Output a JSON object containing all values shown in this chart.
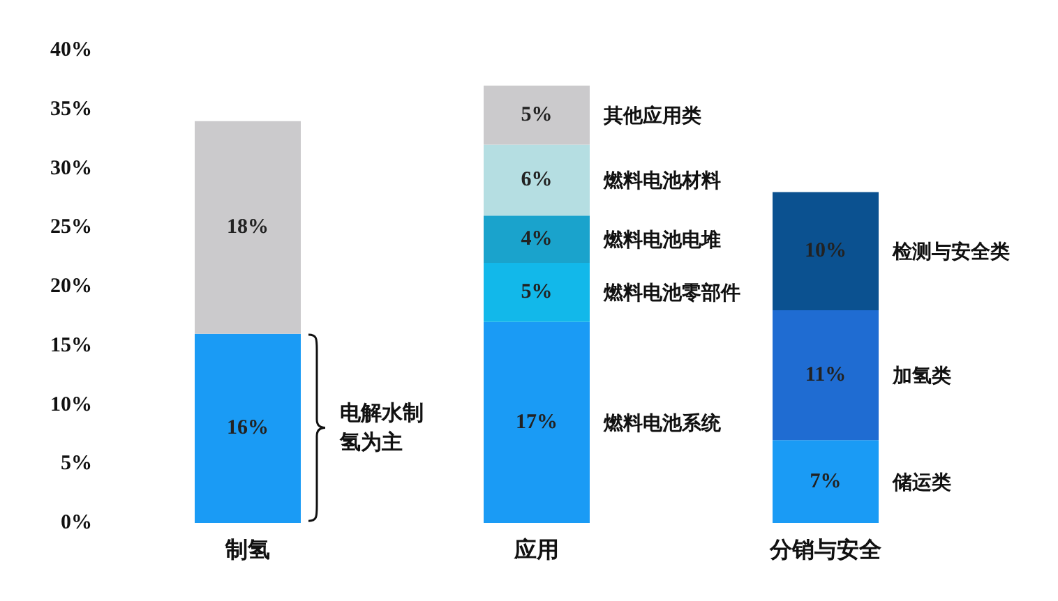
{
  "chart_data": {
    "type": "bar",
    "stacked": true,
    "categories": [
      "制氢",
      "应用",
      "分销与安全"
    ],
    "ylim": [
      0,
      40
    ],
    "yticks": [
      {
        "value": 0,
        "label": "0%"
      },
      {
        "value": 5,
        "label": "5%"
      },
      {
        "value": 10,
        "label": "10%"
      },
      {
        "value": 15,
        "label": "15%"
      },
      {
        "value": 20,
        "label": "20%"
      },
      {
        "value": 25,
        "label": "25%"
      },
      {
        "value": 30,
        "label": "30%"
      },
      {
        "value": 35,
        "label": "35%"
      },
      {
        "value": 40,
        "label": "40%"
      }
    ],
    "grid": false,
    "legend": false,
    "series": [
      {
        "color": "#1a9bf5",
        "values": [
          16,
          null,
          null
        ],
        "value_labels": [
          "16%",
          null,
          null
        ]
      },
      {
        "color": "#cbcacc",
        "values": [
          18,
          null,
          null
        ],
        "value_labels": [
          "18%",
          null,
          null
        ]
      },
      {
        "name": "燃料电池系统",
        "color": "#1a9bf5",
        "values": [
          null,
          17,
          null
        ],
        "value_labels": [
          null,
          "17%",
          null
        ]
      },
      {
        "name": "燃料电池零部件",
        "color": "#12b8ea",
        "values": [
          null,
          5,
          null
        ],
        "value_labels": [
          null,
          "5%",
          null
        ]
      },
      {
        "name": "燃料电池电堆",
        "color": "#1aa3cc",
        "values": [
          null,
          4,
          null
        ],
        "value_labels": [
          null,
          "4%",
          null
        ]
      },
      {
        "name": "燃料电池材料",
        "color": "#b5dee2",
        "values": [
          null,
          6,
          null
        ],
        "value_labels": [
          null,
          "6%",
          null
        ]
      },
      {
        "name": "其他应用类",
        "color": "#cbcacc",
        "values": [
          null,
          5,
          null
        ],
        "value_labels": [
          null,
          "5%",
          null
        ]
      },
      {
        "name": "储运类",
        "color": "#1a9bf5",
        "values": [
          null,
          null,
          7
        ],
        "value_labels": [
          null,
          null,
          "7%"
        ]
      },
      {
        "name": "加氢类",
        "color": "#1f6cd2",
        "values": [
          null,
          null,
          11
        ],
        "value_labels": [
          null,
          null,
          "11%"
        ]
      },
      {
        "name": "检测与安全类",
        "color": "#0b5190",
        "values": [
          null,
          null,
          10
        ],
        "value_labels": [
          null,
          null,
          "10%"
        ]
      }
    ],
    "annotations": [
      "电解水制氢为主"
    ]
  }
}
